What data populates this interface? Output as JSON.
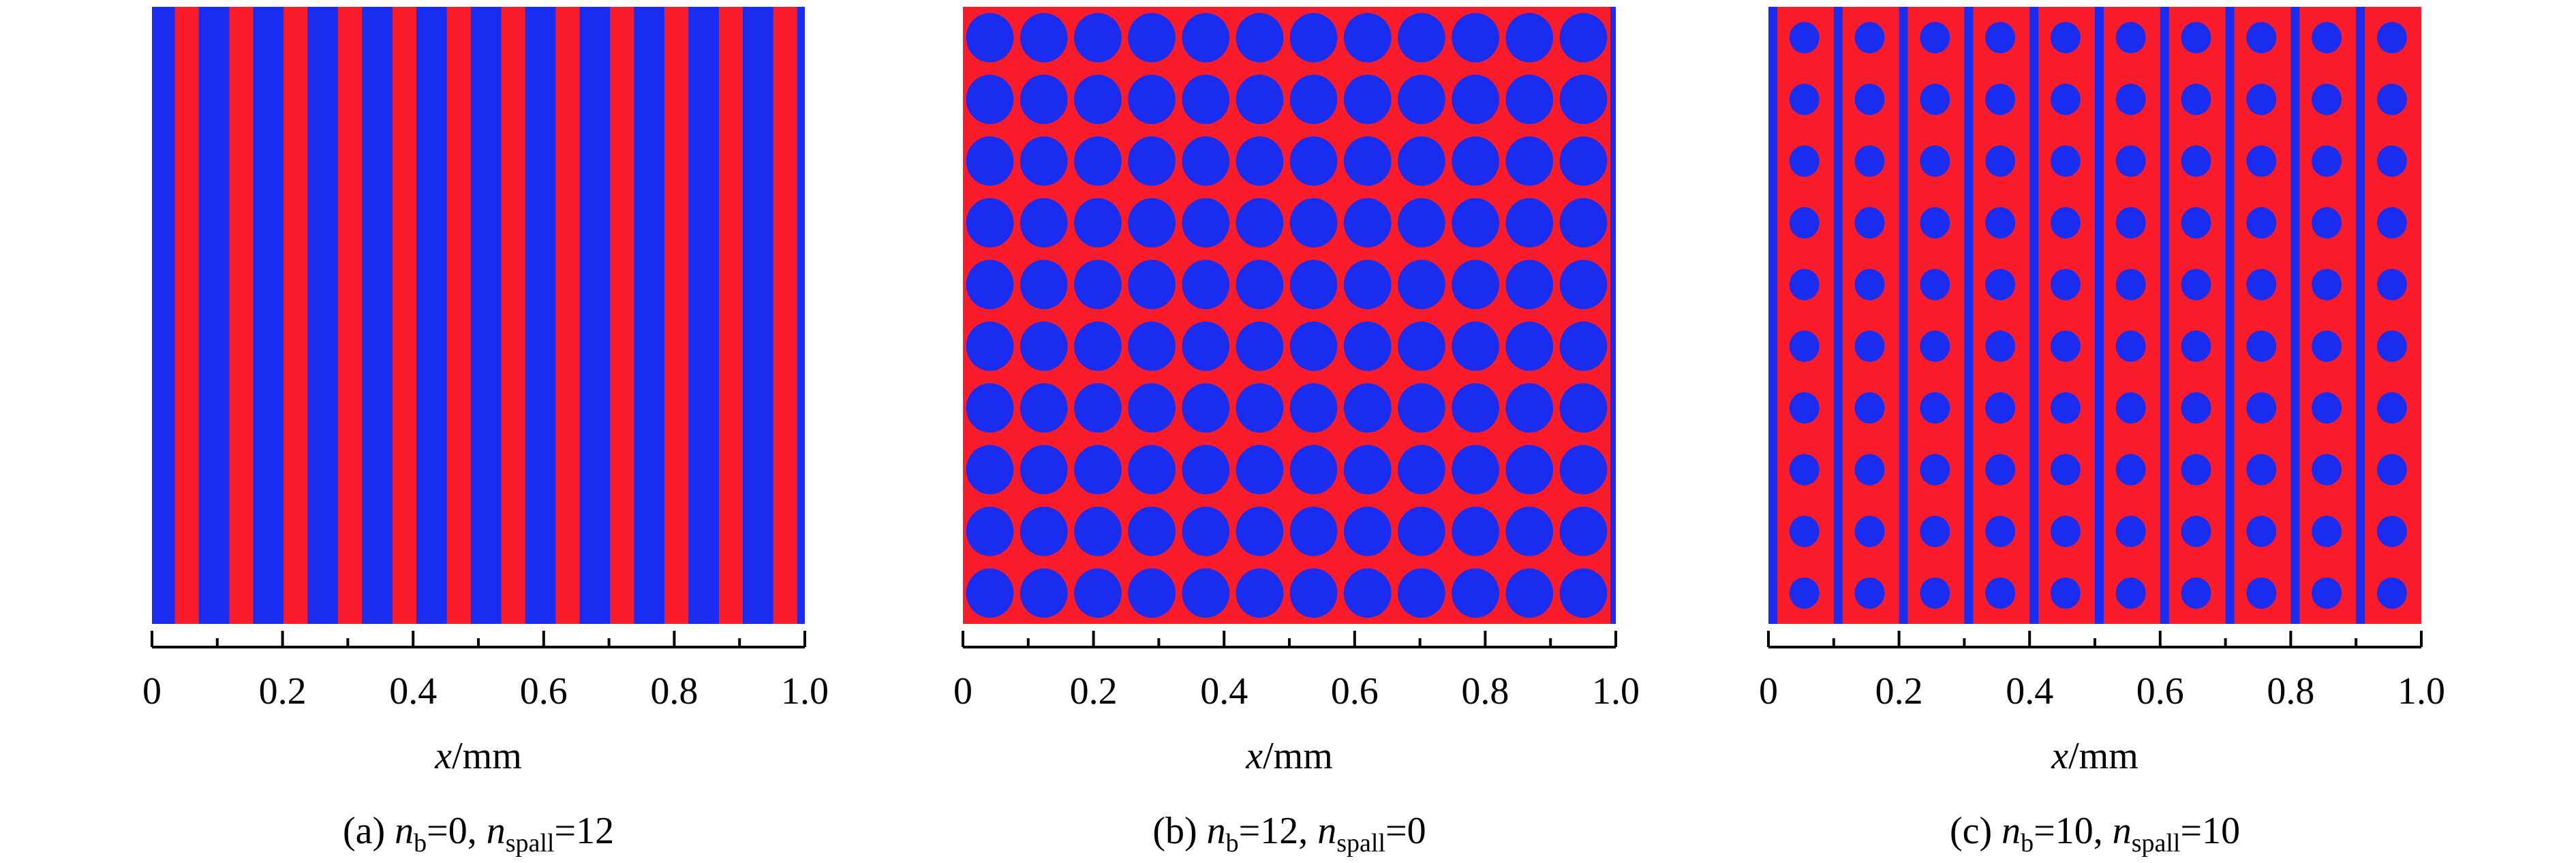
{
  "chart_data": [
    {
      "type": "stripes",
      "colors": {
        "blue": "#1a2cf0",
        "red": "#fa1c2a"
      },
      "xlim": [
        0,
        1
      ],
      "xticks": [
        0,
        0.2,
        0.4,
        0.6,
        0.8,
        {
          "value": 1,
          "label": "1.0"
        }
      ],
      "xminor": [
        0.1,
        0.3,
        0.5,
        0.7,
        0.9
      ],
      "xlabel": {
        "var": "x",
        "unit": "/mm"
      },
      "caption": {
        "label": "(a)",
        "var": "n",
        "sub_b": "b",
        "eq": "=",
        "n_b": 0,
        "sep": ",",
        "sub_spall": "spall",
        "n_spall": 12
      }
    },
    {
      "type": "particles",
      "rows": 10,
      "colors": {
        "blue": "#1a2cf0",
        "red": "#fa1c2a"
      },
      "xlim": [
        0,
        1
      ],
      "xticks": [
        0,
        0.2,
        0.4,
        0.6,
        0.8,
        {
          "value": 1,
          "label": "1.0"
        }
      ],
      "xminor": [
        0.1,
        0.3,
        0.5,
        0.7,
        0.9
      ],
      "xlabel": {
        "var": "x",
        "unit": "/mm"
      },
      "caption": {
        "label": "(b)",
        "var": "n",
        "sub_b": "b",
        "eq": "=",
        "n_b": 12,
        "sep": ",",
        "sub_spall": "spall",
        "n_spall": 0
      }
    },
    {
      "type": "mixed",
      "rows": 10,
      "colors": {
        "blue": "#1a2cf0",
        "red": "#fa1c2a"
      },
      "xlim": [
        0,
        1
      ],
      "xticks": [
        0,
        0.2,
        0.4,
        0.6,
        0.8,
        {
          "value": 1,
          "label": "1.0"
        }
      ],
      "xminor": [
        0.1,
        0.3,
        0.5,
        0.7,
        0.9
      ],
      "xlabel": {
        "var": "x",
        "unit": "/mm"
      },
      "caption": {
        "label": "(c)",
        "var": "n",
        "sub_b": "b",
        "eq": "=",
        "n_b": 10,
        "sep": ",",
        "sub_spall": "spall",
        "n_spall": 10
      }
    }
  ]
}
